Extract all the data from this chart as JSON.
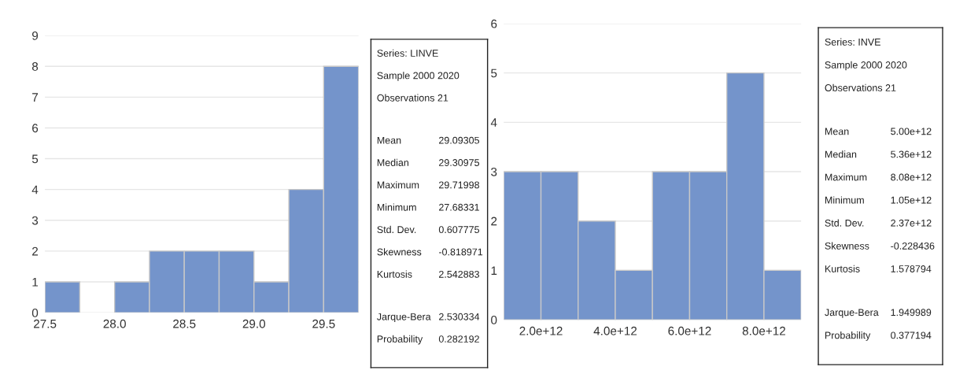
{
  "chart_data": [
    {
      "type": "histogram",
      "bins": [
        27.5,
        27.75,
        28.0,
        28.25,
        28.5,
        28.75,
        29.0,
        29.25,
        29.5,
        29.75
      ],
      "values": [
        1,
        0,
        1,
        2,
        2,
        2,
        1,
        4,
        8
      ],
      "color": "#7494cb",
      "xlim": [
        27.5,
        29.75
      ],
      "xticks": [
        {
          "value": 27.5,
          "label": "27.5"
        },
        {
          "value": 28.0,
          "label": "28.0"
        },
        {
          "value": 28.5,
          "label": "28.5"
        },
        {
          "value": 29.0,
          "label": "29.0"
        },
        {
          "value": 29.5,
          "label": "29.5"
        }
      ],
      "ylim": [
        0,
        9
      ],
      "yticks": [
        0,
        1,
        2,
        3,
        4,
        5,
        6,
        7,
        8,
        9
      ],
      "grid": "y"
    },
    {
      "type": "other",
      "annotations": [
        "Series: LINVE",
        "Sample 2000 2020",
        "Observations 21",
        "Mean",
        "29.09305",
        "Median",
        "29.30975",
        "Maximum",
        "29.71998",
        "Minimum",
        "27.68331",
        "Std. Dev.",
        "0.607775",
        "Skewness",
        "-0.818971",
        "Kurtosis",
        "2.542883",
        "Jarque-Bera",
        "2.530334",
        "Probability",
        "0.282192"
      ]
    },
    {
      "type": "histogram",
      "bins": [
        1000000000000.0,
        2000000000000.0,
        3000000000000.0,
        4000000000000.0,
        5000000000000.0,
        6000000000000.0,
        7000000000000.0,
        8000000000000.0,
        9000000000000.0
      ],
      "values": [
        3,
        3,
        2,
        1,
        3,
        3,
        5,
        1
      ],
      "color": "#7494cb",
      "xlim": [
        1000000000000.0,
        9000000000000.0
      ],
      "xticks": [
        {
          "value": 2000000000000.0,
          "label": "2.0e+12"
        },
        {
          "value": 4000000000000.0,
          "label": "4.0e+12"
        },
        {
          "value": 6000000000000.0,
          "label": "6.0e+12"
        },
        {
          "value": 8000000000000.0,
          "label": "8.0e+12"
        }
      ],
      "ylim": [
        0,
        6
      ],
      "yticks": [
        0,
        1,
        2,
        3,
        4,
        5,
        6
      ],
      "grid": "y"
    },
    {
      "type": "other",
      "annotations": [
        "Series: INVE",
        "Sample 2000 2020",
        "Observations 21",
        "Mean",
        "5.00e+12",
        "Median",
        "5.36e+12",
        "Maximum",
        "8.08e+12",
        "Minimum",
        "1.05e+12",
        "Std. Dev.",
        "2.37e+12",
        "Skewness",
        "-0.228436",
        "Kurtosis",
        "1.578794",
        "Jarque-Bera",
        "1.949989",
        "Probability",
        "0.377194"
      ]
    }
  ]
}
